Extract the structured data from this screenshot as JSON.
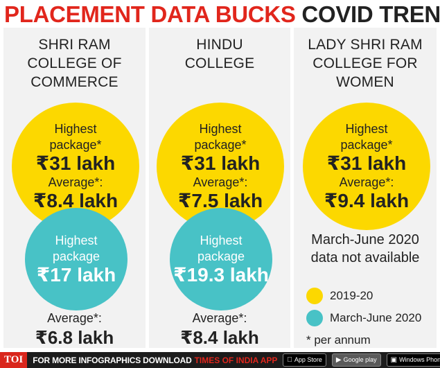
{
  "header": {
    "title_red": "PLACEMENT DATA BUCKS",
    "title_black": "COVID TREND"
  },
  "colors": {
    "yellow": "#fcd800",
    "teal": "#48c2c6",
    "red": "#e1261c",
    "panel": "#f2f2f2"
  },
  "columns": [
    {
      "name_lines": [
        "SHRI RAM",
        "COLLEGE OF",
        "COMMERCE"
      ],
      "y2019": {
        "highest_label_1": "Highest",
        "highest_label_2": "package*",
        "highest_value": "₹31 lakh",
        "average_label": "Average*:",
        "average_value": "₹8.4 lakh"
      },
      "y2020": {
        "highest_label_1": "Highest",
        "highest_label_2": "package",
        "highest_value": "₹17 lakh",
        "average_label": "Average*:",
        "average_value": "₹6.8 lakh"
      }
    },
    {
      "name_lines": [
        "HINDU",
        "COLLEGE"
      ],
      "y2019": {
        "highest_label_1": "Highest",
        "highest_label_2": "package*",
        "highest_value": "₹31 lakh",
        "average_label": "Average*:",
        "average_value": "₹7.5 lakh"
      },
      "y2020": {
        "highest_label_1": "Highest",
        "highest_label_2": "package",
        "highest_value": "₹19.3 lakh",
        "average_label": "Average*:",
        "average_value": "₹8.4 lakh"
      }
    },
    {
      "name_lines": [
        "LADY SHRI RAM",
        "COLLEGE FOR",
        "WOMEN"
      ],
      "y2019": {
        "highest_label_1": "Highest",
        "highest_label_2": "package*",
        "highest_value": "₹31 lakh",
        "average_label": "Average*:",
        "average_value": "₹9.4 lakh"
      },
      "note_line_1": "March-June 2020",
      "note_line_2": "data not available"
    }
  ],
  "legend": {
    "item_2019": "2019-20",
    "item_2020": "March-June 2020",
    "footnote": "* per annum"
  },
  "footer": {
    "brand": "TOI",
    "text": "FOR MORE  INFOGRAPHICS DOWNLOAD",
    "highlight": "TIMES OF INDIA APP",
    "app_store": "App Store",
    "google_play": "Google play",
    "windows": "Windows Phone"
  }
}
